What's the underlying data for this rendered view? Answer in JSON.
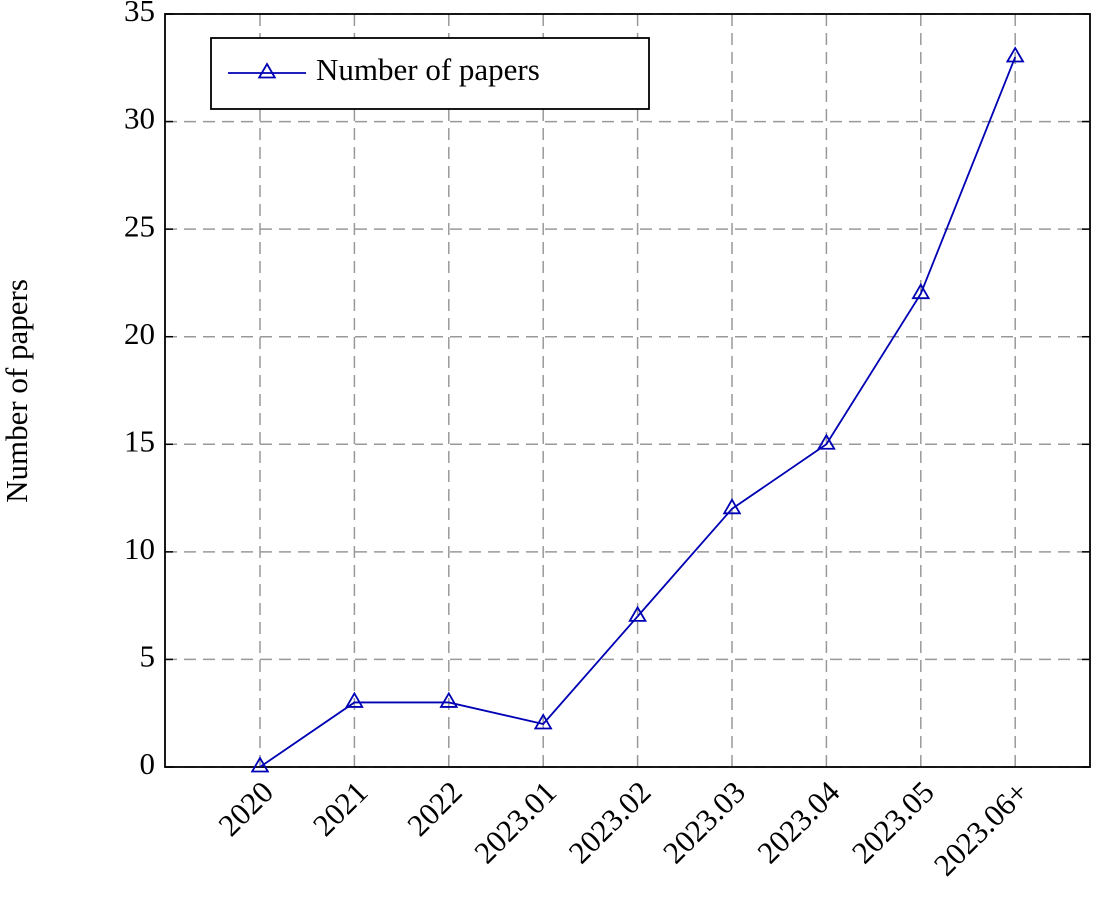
{
  "chart_data": {
    "type": "line",
    "ylabel": "Number of papers",
    "categories": [
      "2020",
      "2021",
      "2022",
      "2023.01",
      "2023.02",
      "2023.03",
      "2023.04",
      "2023.05",
      "2023.06+"
    ],
    "series": [
      {
        "name": "Number of papers",
        "color": "#0000b4",
        "values": [
          0,
          3,
          3,
          2,
          7,
          12,
          15,
          22,
          33
        ]
      }
    ],
    "ylim": [
      0,
      35
    ],
    "yticks": [
      0,
      5,
      10,
      15,
      20,
      25,
      30,
      35
    ],
    "grid": true,
    "legend": "upper left"
  }
}
